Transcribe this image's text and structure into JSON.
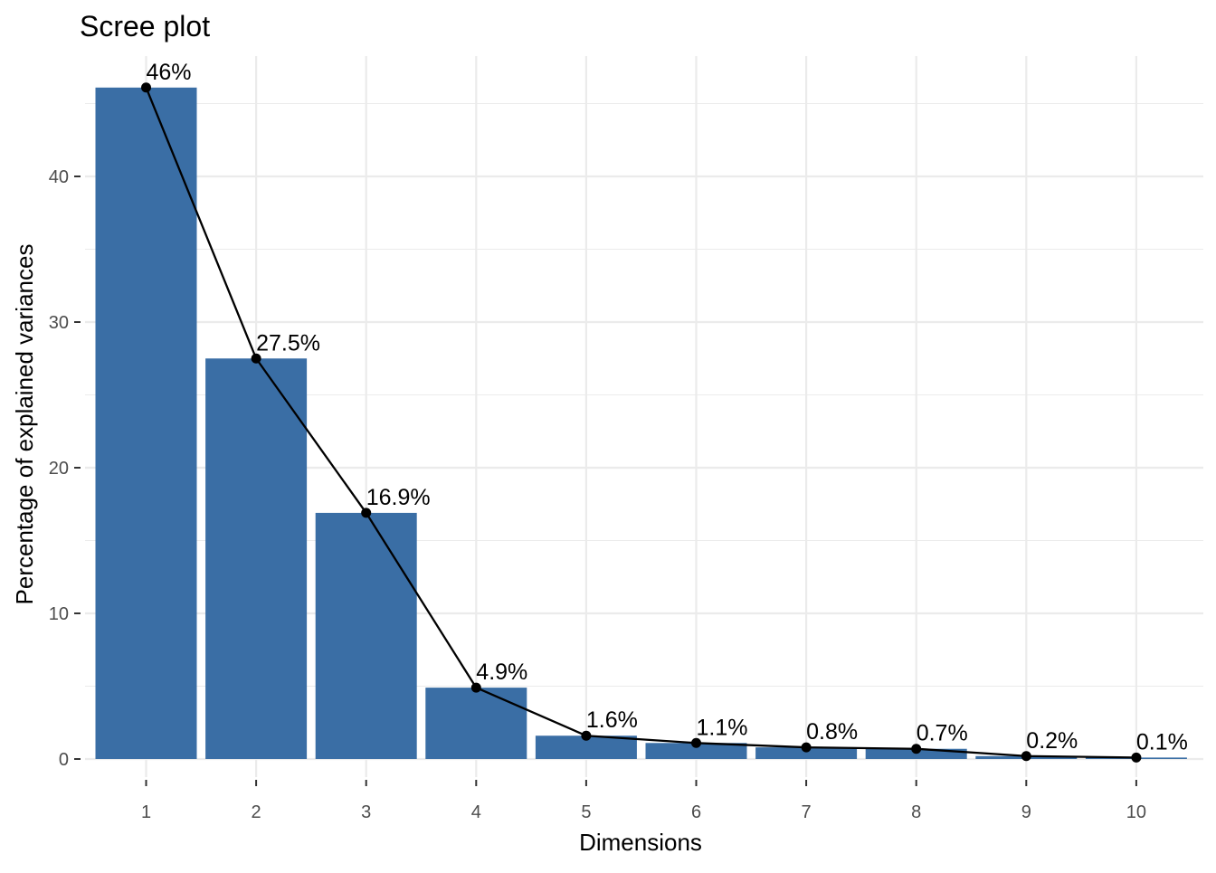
{
  "chart_data": {
    "type": "bar",
    "title": "Scree plot",
    "xlabel": "Dimensions",
    "ylabel": "Percentage of explained variances",
    "categories": [
      "1",
      "2",
      "3",
      "4",
      "5",
      "6",
      "7",
      "8",
      "9",
      "10"
    ],
    "values": [
      46.1,
      27.5,
      16.9,
      4.9,
      1.6,
      1.1,
      0.8,
      0.7,
      0.2,
      0.1
    ],
    "data_labels": [
      "46%",
      "27.5%",
      "16.9%",
      "4.9%",
      "1.6%",
      "1.1%",
      "0.8%",
      "0.7%",
      "0.2%",
      "0.1%"
    ],
    "overlay": "line-with-points",
    "y_ticks": [
      0,
      10,
      20,
      30,
      40
    ],
    "y_tick_labels": [
      "0",
      "10",
      "20",
      "30",
      "40"
    ],
    "ylim": [
      0,
      48.4
    ],
    "grid": true,
    "legend": "none",
    "colors": {
      "bar": "#3A6EA5",
      "line": "#000000",
      "grid": "#ebebeb",
      "tick_label": "#4d4d4d"
    }
  }
}
